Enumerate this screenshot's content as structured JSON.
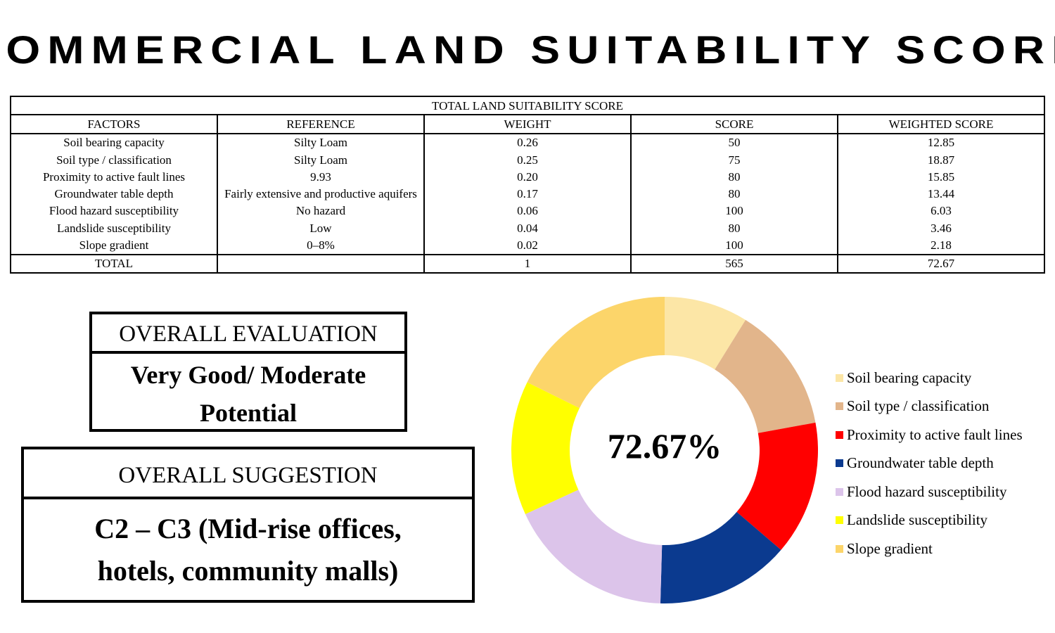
{
  "title": "COMMERCIAL LAND SUITABILITY SCORE",
  "table": {
    "caption": "TOTAL LAND SUITABILITY SCORE",
    "headers": [
      "FACTORS",
      "REFERENCE",
      "WEIGHT",
      "SCORE",
      "WEIGHTED SCORE"
    ],
    "rows": [
      [
        "Soil bearing capacity",
        "Silty Loam",
        "0.26",
        "50",
        "12.85"
      ],
      [
        "Soil type / classification",
        "Silty Loam",
        "0.25",
        "75",
        "18.87"
      ],
      [
        "Proximity to active fault lines",
        "9.93",
        "0.20",
        "80",
        "15.85"
      ],
      [
        "Groundwater table depth",
        "Fairly extensive and productive aquifers",
        "0.17",
        "80",
        "13.44"
      ],
      [
        "Flood hazard susceptibility",
        "No hazard",
        "0.06",
        "100",
        "6.03"
      ],
      [
        "Landslide susceptibility",
        "Low",
        "0.04",
        "80",
        "3.46"
      ],
      [
        "Slope gradient",
        "0–8%",
        "0.02",
        "100",
        "2.18"
      ]
    ],
    "total": [
      "TOTAL",
      "",
      "1",
      "565",
      "72.67"
    ]
  },
  "evaluation": {
    "heading": "OVERALL EVALUATION",
    "line1": "Very Good/ Moderate",
    "line2": "Potential"
  },
  "suggestion": {
    "heading": "OVERALL SUGGESTION",
    "line1": "C2 – C3 (Mid-rise offices,",
    "line2": "hotels, community malls)"
  },
  "chart_data": {
    "type": "pie",
    "donut": true,
    "center_label": "72.67%",
    "legend_position": "right",
    "categories": [
      "Soil bearing capacity",
      "Soil type / classification",
      "Proximity to active fault lines",
      "Groundwater table depth",
      "Flood hazard susceptibility",
      "Landslide susceptibility",
      "Slope gradient"
    ],
    "values": [
      50,
      75,
      80,
      80,
      100,
      80,
      100
    ],
    "colors": [
      "#FCE6A6",
      "#E2B58B",
      "#FF0000",
      "#0B3A8F",
      "#DCC4EA",
      "#FFFF00",
      "#FCD56A"
    ]
  }
}
